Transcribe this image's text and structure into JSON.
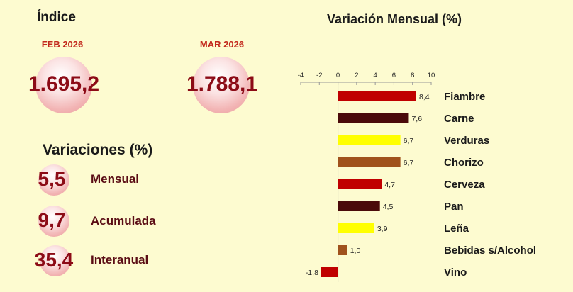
{
  "indice": {
    "title": "Índice",
    "periods": [
      {
        "label": "FEB 2026",
        "value": "1.695,2"
      },
      {
        "label": "MAR 2026",
        "value": "1.788,1"
      }
    ]
  },
  "variaciones": {
    "title": "Variaciones (%)",
    "items": [
      {
        "value": "5,5",
        "label": "Mensual"
      },
      {
        "value": "9,7",
        "label": "Acumulada"
      },
      {
        "value": "35,4",
        "label": "Interanual"
      }
    ]
  },
  "chart_data": {
    "type": "bar",
    "orientation": "horizontal",
    "title": "Variación Mensual (%)",
    "categories": [
      "Fiambre",
      "Carne",
      "Verduras",
      "Chorizo",
      "Cerveza",
      "Pan",
      "Leña",
      "Bebidas s/Alcohol",
      "Vino"
    ],
    "values": [
      8.4,
      7.6,
      6.7,
      6.7,
      4.7,
      4.5,
      3.9,
      1.0,
      -1.8
    ],
    "value_labels": [
      "8,4",
      "7,6",
      "6,7",
      "6,7",
      "4,7",
      "4,5",
      "3,9",
      "1,0",
      "-1,8"
    ],
    "colors": [
      "#c00000",
      "#4a0a0a",
      "#ffff00",
      "#a0521c",
      "#c00000",
      "#4a0a0a",
      "#ffff00",
      "#a0521c",
      "#c00000"
    ],
    "xlim": [
      -4,
      10
    ],
    "xticks": [
      "-4",
      "-2",
      "0",
      "2",
      "4",
      "6",
      "8",
      "10"
    ],
    "grid": false,
    "legend": "none"
  }
}
